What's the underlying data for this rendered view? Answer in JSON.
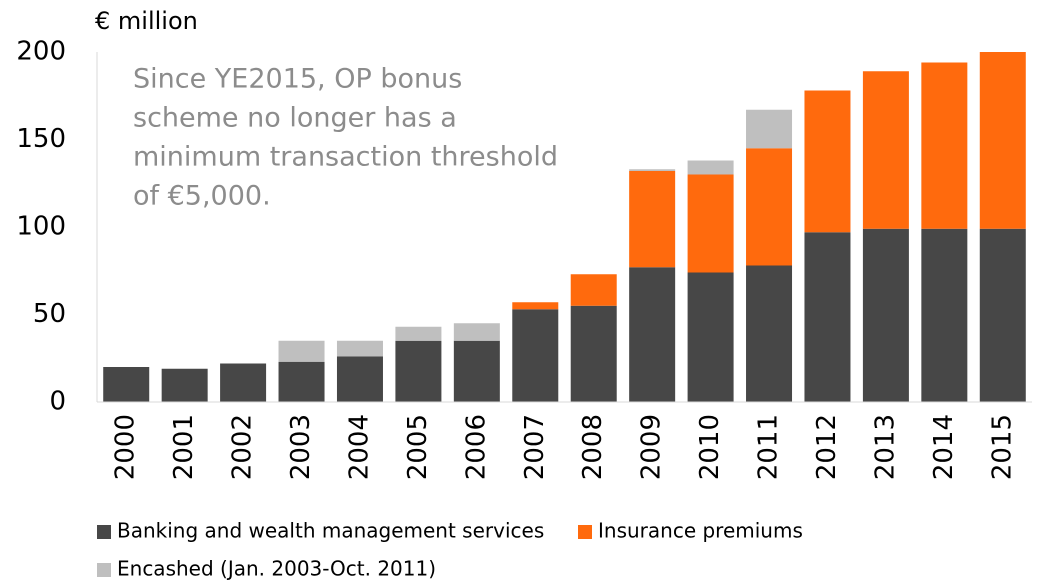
{
  "chart_data": {
    "type": "stacked_bar",
    "y_axis_label": "€ million",
    "annotation": [
      "Since YE2015, OP bonus",
      "scheme no longer has a",
      "minimum transaction threshold",
      "of €5,000."
    ],
    "categories": [
      "2000",
      "2001",
      "2002",
      "2003",
      "2004",
      "2005",
      "2006",
      "2007",
      "2008",
      "2009",
      "2010",
      "2011",
      "2012",
      "2013",
      "2014",
      "2015"
    ],
    "series": [
      {
        "name": "Banking and wealth management services",
        "color": "#474747",
        "values": [
          20,
          19,
          22,
          23,
          26,
          35,
          35,
          53,
          55,
          77,
          74,
          78,
          97,
          99,
          99,
          99
        ]
      },
      {
        "name": "Insurance premiums",
        "color": "#ff6a0d",
        "values": [
          0,
          0,
          0,
          0,
          0,
          0,
          0,
          4,
          18,
          55,
          56,
          67,
          81,
          90,
          95,
          101
        ]
      },
      {
        "name": "Encashed (Jan. 2003-Oct. 2011)",
        "color": "#bfbfbf",
        "values": [
          0,
          0,
          0,
          12,
          9,
          8,
          10,
          0,
          0,
          1,
          8,
          22,
          0,
          0,
          0,
          0
        ]
      }
    ],
    "ylim": [
      0,
      200
    ],
    "yticks": [
      0,
      50,
      100,
      150,
      200
    ],
    "grid": false
  }
}
